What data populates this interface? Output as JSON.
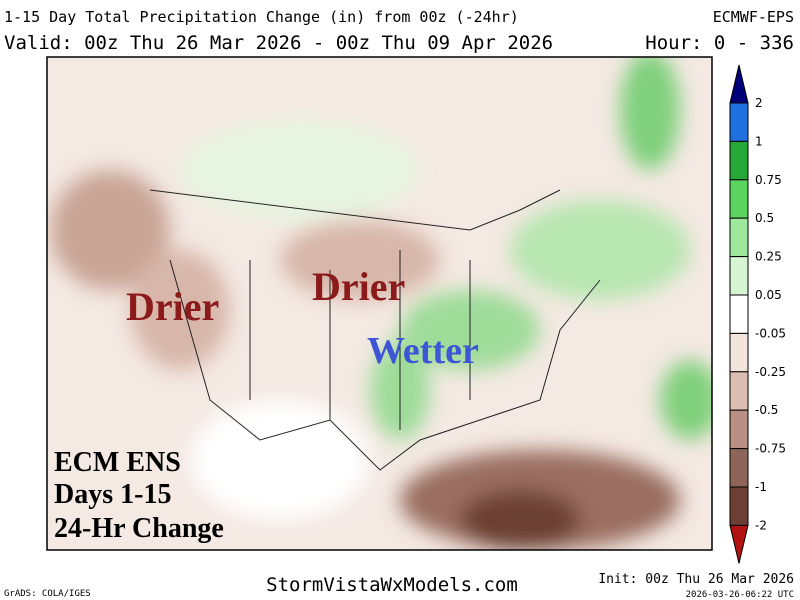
{
  "header": {
    "title": "1-15 Day Total Precipitation Change (in) from 00z (-24hr)",
    "model": "ECMWF-EPS",
    "valid": "Valid: 00z Thu 26 Mar 2026 - 00z Thu 09 Apr 2026",
    "hours": "Hour: 0 - 336"
  },
  "map": {
    "annotations": [
      "Drier",
      "Drier",
      "Wetter"
    ],
    "caption": [
      "ECM ENS",
      "Days 1-15",
      "24-Hr Change"
    ]
  },
  "colorbar": {
    "labels": [
      "2",
      "1",
      "0.75",
      "0.5",
      "0.25",
      "0.05",
      "-0.05",
      "-0.25",
      "-0.5",
      "-0.75",
      "-1",
      "-2"
    ],
    "colors": [
      "#00007a",
      "#1f6fdf",
      "#25a838",
      "#5ad45c",
      "#9ee89c",
      "#d6f5d2",
      "#ffffff",
      "#f3e4dc",
      "#ddbdb1",
      "#ba9084",
      "#8e6559",
      "#6b3f33",
      "#b31212"
    ]
  },
  "footer": {
    "software": "GrADS: COLA/IGES",
    "site": "StormVistaWxModels.com",
    "init": "Init: 00z Thu 26 Mar 2026",
    "stamp": "2026-03-26-06:22 UTC"
  }
}
